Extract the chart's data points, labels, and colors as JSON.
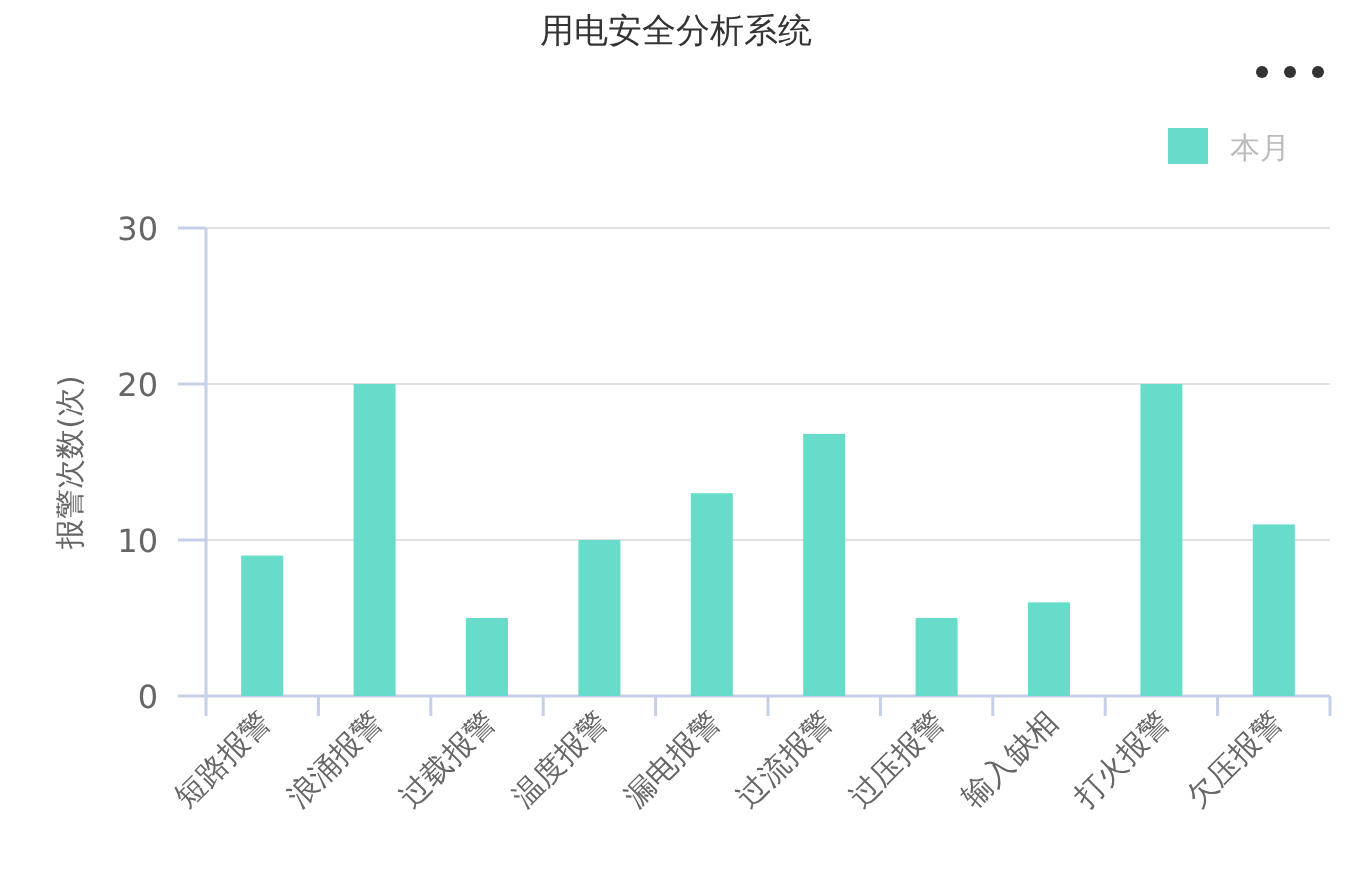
{
  "chart_data": {
    "type": "bar",
    "title": "用电安全分析系统",
    "ylabel": "报警次数(次)",
    "categories": [
      "短路报警",
      "浪涌报警",
      "过载报警",
      "温度报警",
      "漏电报警",
      "过流报警",
      "过压报警",
      "输入缺相",
      "打火报警",
      "欠压报警"
    ],
    "series": [
      {
        "name": "本月",
        "color": "#67dccb",
        "values": [
          9,
          20,
          5,
          10,
          13,
          16.8,
          5,
          6,
          20,
          11
        ]
      }
    ],
    "ylim": [
      0,
      30
    ],
    "yticks": [
      0,
      10,
      20,
      30
    ],
    "grid": "y",
    "legend": "top right"
  }
}
